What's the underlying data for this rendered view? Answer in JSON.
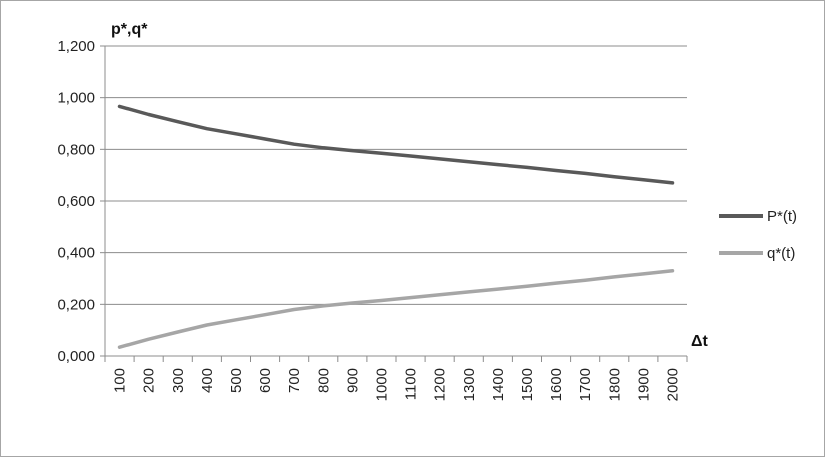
{
  "chart_data": {
    "type": "line",
    "ylabel": "p*,q*",
    "xlabel": "Δt",
    "ylim": [
      0,
      1.2
    ],
    "yticks": [
      "0,000",
      "0,200",
      "0,400",
      "0,600",
      "0,800",
      "1,000",
      "1,200"
    ],
    "ytick_values": [
      0,
      0.2,
      0.4,
      0.6,
      0.8,
      1.0,
      1.2
    ],
    "grid": "horizontal",
    "legend_position": "right",
    "categories": [
      "100",
      "200",
      "300",
      "400",
      "500",
      "600",
      "700",
      "800",
      "900",
      "1000",
      "1100",
      "1200",
      "1300",
      "1400",
      "1500",
      "1600",
      "1700",
      "1800",
      "1900",
      "2000"
    ],
    "series": [
      {
        "name": "P*(t)",
        "color": "#595959",
        "values": [
          0.966,
          0.935,
          0.907,
          0.88,
          0.86,
          0.84,
          0.82,
          0.806,
          0.795,
          0.785,
          0.774,
          0.763,
          0.752,
          0.741,
          0.73,
          0.718,
          0.707,
          0.694,
          0.682,
          0.67
        ]
      },
      {
        "name": "q*(t)",
        "color": "#a6a6a6",
        "values": [
          0.034,
          0.065,
          0.093,
          0.12,
          0.14,
          0.16,
          0.18,
          0.194,
          0.205,
          0.215,
          0.226,
          0.237,
          0.248,
          0.259,
          0.27,
          0.282,
          0.293,
          0.306,
          0.318,
          0.33
        ]
      }
    ]
  }
}
